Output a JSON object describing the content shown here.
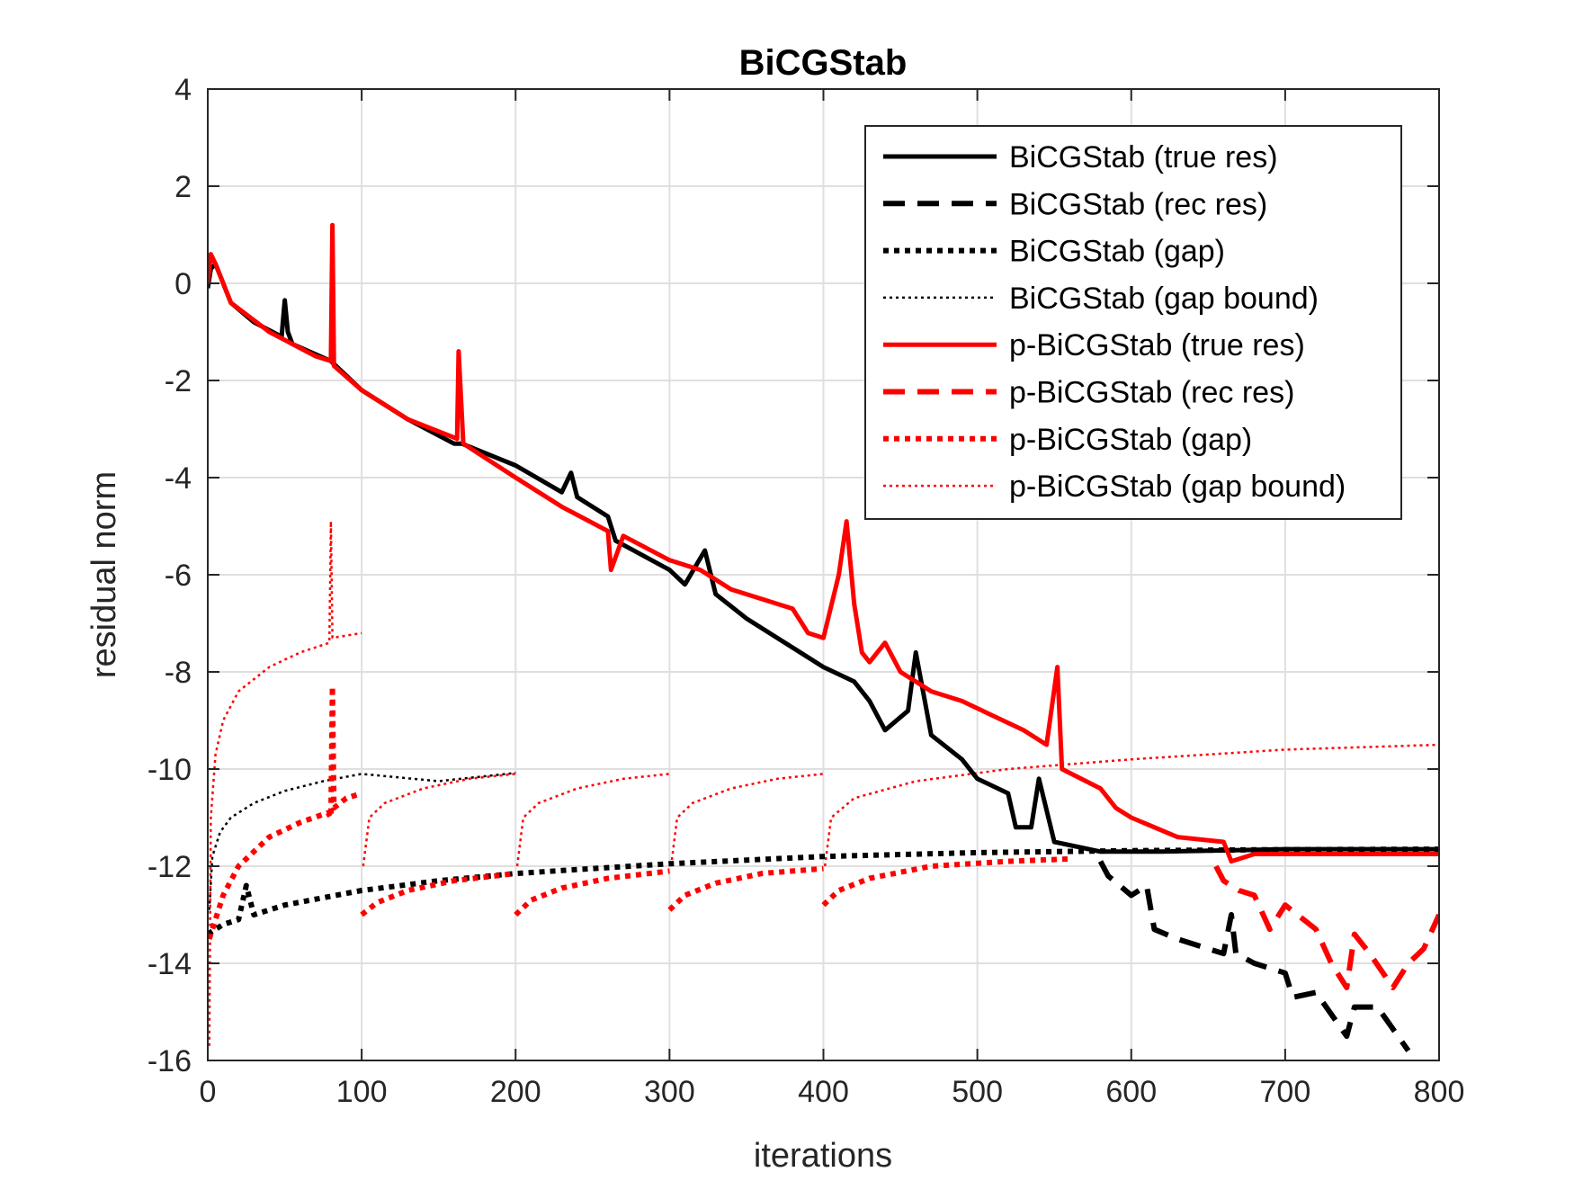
{
  "chart_data": {
    "type": "line",
    "title": "BiCGStab",
    "xlabel": "iterations",
    "ylabel": "residual norm",
    "xlim": [
      0,
      800
    ],
    "ylim": [
      -16,
      4
    ],
    "xticks": [
      0,
      100,
      200,
      300,
      400,
      500,
      600,
      700,
      800
    ],
    "yticks": [
      4,
      2,
      0,
      -2,
      -4,
      -6,
      -8,
      -10,
      -12,
      -14,
      -16
    ],
    "grid": true,
    "legend_position": "top-right",
    "colors": {
      "black": "#000000",
      "red": "#ff0000"
    },
    "series": [
      {
        "name": "BiCGStab (true res)",
        "color": "#000000",
        "style": "solid",
        "points": [
          [
            0,
            -0.1
          ],
          [
            2,
            0.3
          ],
          [
            5,
            0.4
          ],
          [
            15,
            -0.4
          ],
          [
            30,
            -0.8
          ],
          [
            48,
            -1.1
          ],
          [
            50,
            -0.35
          ],
          [
            52,
            -1.0
          ],
          [
            55,
            -1.25
          ],
          [
            80,
            -1.6
          ],
          [
            100,
            -2.2
          ],
          [
            130,
            -2.8
          ],
          [
            160,
            -3.3
          ],
          [
            165,
            -3.3
          ],
          [
            200,
            -3.75
          ],
          [
            230,
            -4.3
          ],
          [
            236,
            -3.9
          ],
          [
            240,
            -4.4
          ],
          [
            260,
            -4.8
          ],
          [
            265,
            -5.3
          ],
          [
            300,
            -5.9
          ],
          [
            310,
            -6.2
          ],
          [
            323,
            -5.5
          ],
          [
            330,
            -6.4
          ],
          [
            350,
            -6.9
          ],
          [
            370,
            -7.3
          ],
          [
            400,
            -7.9
          ],
          [
            420,
            -8.2
          ],
          [
            430,
            -8.6
          ],
          [
            440,
            -9.2
          ],
          [
            455,
            -8.8
          ],
          [
            460,
            -7.6
          ],
          [
            470,
            -9.3
          ],
          [
            490,
            -9.8
          ],
          [
            500,
            -10.2
          ],
          [
            520,
            -10.5
          ],
          [
            525,
            -11.2
          ],
          [
            535,
            -11.2
          ],
          [
            540,
            -10.2
          ],
          [
            550,
            -11.5
          ],
          [
            580,
            -11.7
          ],
          [
            620,
            -11.7
          ],
          [
            700,
            -11.65
          ],
          [
            800,
            -11.65
          ]
        ]
      },
      {
        "name": "BiCGStab (rec res)",
        "color": "#000000",
        "style": "dashed",
        "points": [
          [
            580,
            -11.9
          ],
          [
            585,
            -12.2
          ],
          [
            600,
            -12.6
          ],
          [
            610,
            -12.4
          ],
          [
            615,
            -13.3
          ],
          [
            630,
            -13.5
          ],
          [
            660,
            -13.8
          ],
          [
            665,
            -13.0
          ],
          [
            668,
            -13.8
          ],
          [
            680,
            -14.0
          ],
          [
            700,
            -14.2
          ],
          [
            705,
            -14.7
          ],
          [
            720,
            -14.6
          ],
          [
            740,
            -15.5
          ],
          [
            745,
            -14.9
          ],
          [
            760,
            -14.9
          ],
          [
            780,
            -15.8
          ]
        ]
      },
      {
        "name": "BiCGStab (gap)",
        "color": "#000000",
        "style": "dotted",
        "points": [
          [
            0,
            -13.4
          ],
          [
            10,
            -13.2
          ],
          [
            20,
            -13.1
          ],
          [
            25,
            -12.4
          ],
          [
            30,
            -13.0
          ],
          [
            50,
            -12.8
          ],
          [
            100,
            -12.5
          ],
          [
            150,
            -12.3
          ],
          [
            200,
            -12.15
          ],
          [
            300,
            -11.95
          ],
          [
            400,
            -11.8
          ],
          [
            500,
            -11.72
          ],
          [
            600,
            -11.68
          ],
          [
            700,
            -11.66
          ],
          [
            800,
            -11.65
          ]
        ]
      },
      {
        "name": "BiCGStab (gap bound)",
        "color": "#000000",
        "style": "thin-dotted",
        "points": [
          [
            1,
            -12.9
          ],
          [
            3,
            -11.8
          ],
          [
            8,
            -11.3
          ],
          [
            15,
            -11.0
          ],
          [
            30,
            -10.7
          ],
          [
            50,
            -10.45
          ],
          [
            75,
            -10.25
          ],
          [
            100,
            -10.1
          ],
          [
            150,
            -10.25
          ],
          [
            200,
            -10.08
          ]
        ]
      },
      {
        "name": "p-BiCGStab (true res)",
        "color": "#ff0000",
        "style": "solid",
        "points": [
          [
            0,
            0.0
          ],
          [
            2,
            0.6
          ],
          [
            5,
            0.4
          ],
          [
            15,
            -0.4
          ],
          [
            40,
            -1.0
          ],
          [
            70,
            -1.5
          ],
          [
            80,
            -1.6
          ],
          [
            81,
            1.2
          ],
          [
            82,
            -1.7
          ],
          [
            100,
            -2.2
          ],
          [
            130,
            -2.8
          ],
          [
            162,
            -3.2
          ],
          [
            163,
            -1.4
          ],
          [
            166,
            -3.3
          ],
          [
            200,
            -4.0
          ],
          [
            230,
            -4.6
          ],
          [
            260,
            -5.1
          ],
          [
            262,
            -5.9
          ],
          [
            270,
            -5.2
          ],
          [
            300,
            -5.7
          ],
          [
            320,
            -5.9
          ],
          [
            330,
            -6.1
          ],
          [
            340,
            -6.3
          ],
          [
            360,
            -6.5
          ],
          [
            380,
            -6.7
          ],
          [
            390,
            -7.2
          ],
          [
            400,
            -7.3
          ],
          [
            410,
            -6.0
          ],
          [
            415,
            -4.9
          ],
          [
            420,
            -6.6
          ],
          [
            425,
            -7.6
          ],
          [
            430,
            -7.8
          ],
          [
            440,
            -7.4
          ],
          [
            450,
            -8.0
          ],
          [
            460,
            -8.2
          ],
          [
            470,
            -8.4
          ],
          [
            490,
            -8.6
          ],
          [
            510,
            -8.9
          ],
          [
            530,
            -9.2
          ],
          [
            545,
            -9.5
          ],
          [
            552,
            -7.9
          ],
          [
            555,
            -10.0
          ],
          [
            580,
            -10.4
          ],
          [
            590,
            -10.8
          ],
          [
            600,
            -11.0
          ],
          [
            630,
            -11.4
          ],
          [
            660,
            -11.5
          ],
          [
            665,
            -11.9
          ],
          [
            680,
            -11.75
          ],
          [
            700,
            -11.75
          ],
          [
            800,
            -11.75
          ]
        ]
      },
      {
        "name": "p-BiCGStab (rec res)",
        "color": "#ff0000",
        "style": "dashed",
        "points": [
          [
            655,
            -12.0
          ],
          [
            660,
            -12.3
          ],
          [
            670,
            -12.5
          ],
          [
            680,
            -12.6
          ],
          [
            690,
            -13.3
          ],
          [
            700,
            -12.8
          ],
          [
            720,
            -13.3
          ],
          [
            730,
            -14.0
          ],
          [
            740,
            -14.5
          ],
          [
            745,
            -13.4
          ],
          [
            755,
            -13.8
          ],
          [
            770,
            -14.5
          ],
          [
            780,
            -14.0
          ],
          [
            790,
            -13.7
          ],
          [
            800,
            -13.0
          ]
        ]
      },
      {
        "name": "p-BiCGStab (gap)",
        "color": "#ff0000",
        "style": "dotted",
        "segments": [
          [
            [
              1,
              -13.5
            ],
            [
              10,
              -12.6
            ],
            [
              20,
              -12.0
            ],
            [
              40,
              -11.4
            ],
            [
              60,
              -11.1
            ],
            [
              78,
              -10.9
            ],
            [
              80,
              -11.0
            ],
            [
              81,
              -8.3
            ],
            [
              82,
              -10.8
            ],
            [
              90,
              -10.6
            ],
            [
              100,
              -10.5
            ]
          ],
          [
            [
              100,
              -13.0
            ],
            [
              110,
              -12.75
            ],
            [
              130,
              -12.5
            ],
            [
              160,
              -12.3
            ],
            [
              200,
              -12.15
            ]
          ],
          [
            [
              200,
              -13.0
            ],
            [
              210,
              -12.7
            ],
            [
              230,
              -12.45
            ],
            [
              260,
              -12.25
            ],
            [
              300,
              -12.1
            ]
          ],
          [
            [
              300,
              -12.9
            ],
            [
              310,
              -12.6
            ],
            [
              330,
              -12.35
            ],
            [
              360,
              -12.15
            ],
            [
              400,
              -12.05
            ]
          ],
          [
            [
              400,
              -12.8
            ],
            [
              410,
              -12.5
            ],
            [
              430,
              -12.25
            ],
            [
              470,
              -12.0
            ],
            [
              520,
              -11.9
            ],
            [
              560,
              -11.85
            ]
          ]
        ]
      },
      {
        "name": "p-BiCGStab (gap bound)",
        "color": "#ff0000",
        "style": "thin-dotted",
        "segments": [
          [
            [
              1,
              -15.7
            ],
            [
              2,
              -11.0
            ],
            [
              5,
              -9.7
            ],
            [
              10,
              -9.0
            ],
            [
              20,
              -8.4
            ],
            [
              40,
              -7.9
            ],
            [
              60,
              -7.6
            ],
            [
              79,
              -7.4
            ],
            [
              80,
              -4.9
            ],
            [
              81,
              -7.3
            ],
            [
              100,
              -7.2
            ]
          ],
          [
            [
              101,
              -12.0
            ],
            [
              105,
              -11.0
            ],
            [
              115,
              -10.7
            ],
            [
              140,
              -10.4
            ],
            [
              170,
              -10.2
            ],
            [
              200,
              -10.1
            ]
          ],
          [
            [
              201,
              -12.0
            ],
            [
              205,
              -11.0
            ],
            [
              215,
              -10.7
            ],
            [
              240,
              -10.4
            ],
            [
              270,
              -10.2
            ],
            [
              300,
              -10.1
            ]
          ],
          [
            [
              301,
              -12.0
            ],
            [
              305,
              -11.0
            ],
            [
              315,
              -10.7
            ],
            [
              340,
              -10.4
            ],
            [
              370,
              -10.2
            ],
            [
              400,
              -10.1
            ]
          ],
          [
            [
              401,
              -12.0
            ],
            [
              405,
              -11.0
            ],
            [
              420,
              -10.6
            ],
            [
              460,
              -10.25
            ],
            [
              520,
              -10.0
            ],
            [
              600,
              -9.8
            ],
            [
              700,
              -9.6
            ],
            [
              800,
              -9.5
            ]
          ]
        ]
      }
    ]
  }
}
